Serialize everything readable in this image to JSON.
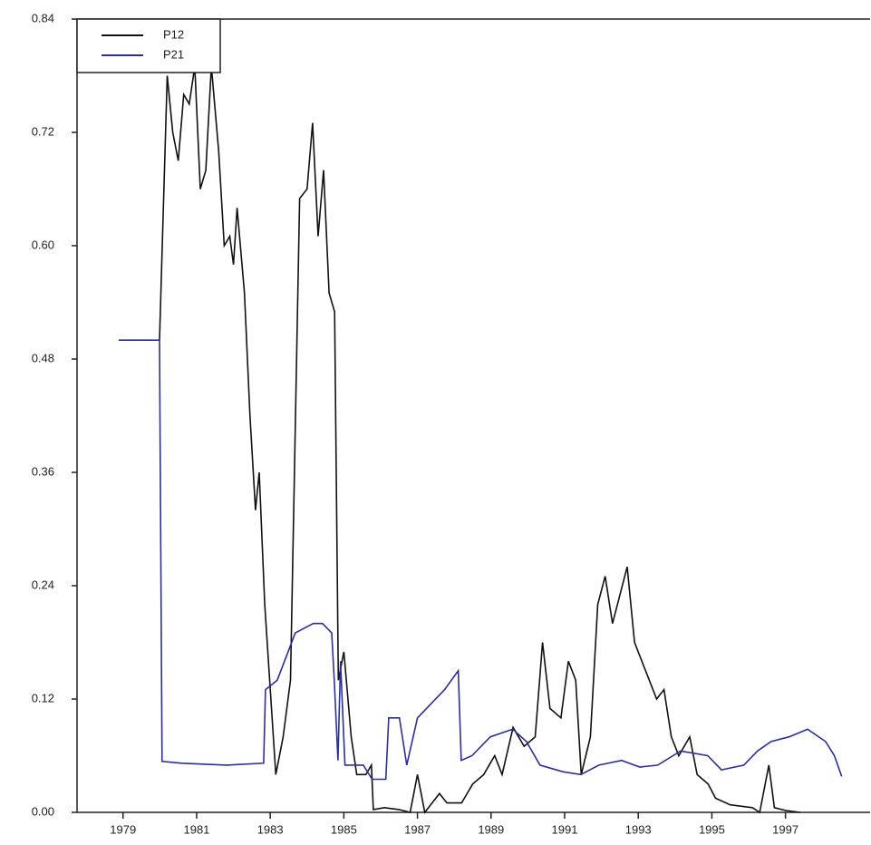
{
  "chart_data": {
    "type": "line",
    "series": [
      {
        "name": "P12",
        "color": "#111111",
        "x": [
          1979.99,
          1980.2,
          1980.35,
          1980.5,
          1980.65,
          1980.8,
          1980.95,
          1981.1,
          1981.25,
          1981.4,
          1981.6,
          1981.75,
          1981.9,
          1982.0,
          1982.1,
          1982.3,
          1982.45,
          1982.6,
          1982.7,
          1982.85,
          1983.0,
          1983.15,
          1983.35,
          1983.55,
          1983.8,
          1984.0,
          1984.15,
          1984.3,
          1984.45,
          1984.6,
          1984.75,
          1984.85,
          1985.0,
          1985.2,
          1985.35,
          1985.6,
          1985.75,
          1985.8,
          1986.1,
          1986.5,
          1986.8,
          1987.0,
          1987.2,
          1987.6,
          1987.8,
          1988.2,
          1988.5,
          1988.8,
          1989.1,
          1989.3,
          1989.6,
          1989.9,
          1990.2,
          1990.4,
          1990.6,
          1990.9,
          1991.1,
          1991.3,
          1991.45,
          1991.7,
          1991.9,
          1992.1,
          1992.3,
          1992.5,
          1992.7,
          1992.9,
          1993.2,
          1993.5,
          1993.7,
          1993.9,
          1994.1,
          1994.4,
          1994.6,
          1994.9,
          1995.1,
          1995.5,
          1996.1,
          1996.3,
          1996.55,
          1996.7,
          1997.0,
          1997.4
        ],
        "values": [
          0.5,
          0.78,
          0.72,
          0.69,
          0.76,
          0.75,
          0.79,
          0.66,
          0.68,
          0.79,
          0.7,
          0.6,
          0.61,
          0.58,
          0.64,
          0.55,
          0.42,
          0.32,
          0.36,
          0.22,
          0.13,
          0.04,
          0.08,
          0.14,
          0.65,
          0.66,
          0.73,
          0.61,
          0.68,
          0.55,
          0.53,
          0.14,
          0.17,
          0.08,
          0.04,
          0.04,
          0.05,
          0.003,
          0.005,
          0.003,
          0.0,
          0.04,
          0.0,
          0.02,
          0.01,
          0.01,
          0.03,
          0.04,
          0.06,
          0.04,
          0.09,
          0.07,
          0.08,
          0.18,
          0.11,
          0.1,
          0.16,
          0.14,
          0.04,
          0.08,
          0.22,
          0.25,
          0.2,
          0.23,
          0.26,
          0.18,
          0.15,
          0.12,
          0.13,
          0.08,
          0.06,
          0.08,
          0.04,
          0.03,
          0.015,
          0.008,
          0.005,
          0.0,
          0.05,
          0.005,
          0.002,
          0.0
        ]
      },
      {
        "name": "P21",
        "color": "#2b2f9a",
        "x": [
          1978.88,
          1979.99,
          1980.06,
          1980.6,
          1981.83,
          1982.82,
          1982.87,
          1983.19,
          1983.68,
          1984.17,
          1984.42,
          1984.67,
          1984.74,
          1984.84,
          1984.91,
          1985.03,
          1985.53,
          1985.77,
          1986.14,
          1986.22,
          1986.51,
          1986.71,
          1987.0,
          1987.74,
          1988.11,
          1988.19,
          1988.48,
          1988.98,
          1989.59,
          1989.96,
          1990.33,
          1990.95,
          1991.44,
          1991.93,
          1992.55,
          1993.04,
          1993.53,
          1994.15,
          1994.89,
          1995.26,
          1995.87,
          1996.24,
          1996.61,
          1997.1,
          1997.6,
          1998.09,
          1998.33,
          1998.53
        ],
        "values": [
          0.5,
          0.5,
          0.054,
          0.052,
          0.05,
          0.052,
          0.13,
          0.14,
          0.19,
          0.2,
          0.2,
          0.19,
          0.14,
          0.055,
          0.16,
          0.05,
          0.05,
          0.035,
          0.035,
          0.1,
          0.1,
          0.05,
          0.1,
          0.13,
          0.15,
          0.055,
          0.06,
          0.08,
          0.088,
          0.075,
          0.05,
          0.043,
          0.04,
          0.05,
          0.055,
          0.048,
          0.05,
          0.065,
          0.06,
          0.045,
          0.05,
          0.065,
          0.075,
          0.08,
          0.088,
          0.075,
          0.06,
          0.038
        ]
      }
    ],
    "xlim": [
      1977.75,
      1999.3
    ],
    "xticks": [
      1979,
      1981,
      1983,
      1985,
      1987,
      1989,
      1991,
      1993,
      1995,
      1997
    ],
    "ylim": [
      0,
      0.84
    ],
    "yticks": [
      {
        "value": 0,
        "label": "0.00"
      },
      {
        "value": 0.12,
        "label": "0.12"
      },
      {
        "value": 0.24,
        "label": "0.24"
      },
      {
        "value": 0.36,
        "label": "0.36"
      },
      {
        "value": 0.48,
        "label": "0.48"
      },
      {
        "value": 0.6,
        "label": "0.60"
      },
      {
        "value": 0.72,
        "label": "0.72"
      },
      {
        "value": 0.84,
        "label": "0.84"
      }
    ],
    "legend": "upper left"
  }
}
